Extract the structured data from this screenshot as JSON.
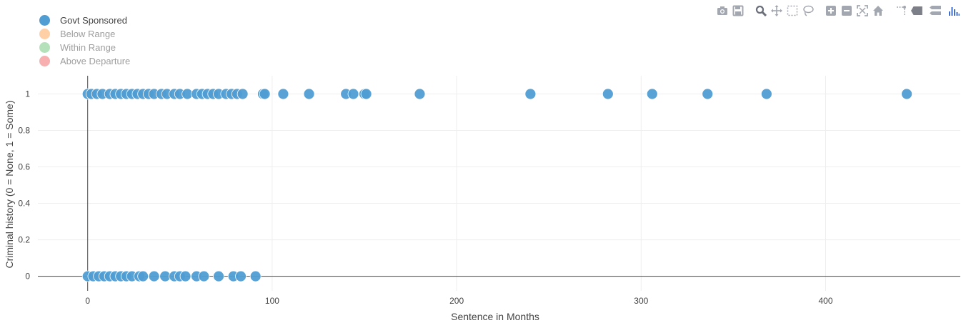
{
  "chart_data": {
    "type": "scatter",
    "xlabel": "Sentence in Months",
    "ylabel": "Criminal history (0 = None, 1 = Some)",
    "xlim": [
      -27,
      473
    ],
    "ylim": [
      -0.08,
      1.1
    ],
    "x_ticks": [
      0,
      100,
      200,
      300,
      400
    ],
    "y_ticks": [
      0,
      0.2,
      0.4,
      0.6,
      0.8,
      1
    ],
    "y_tick_labels": [
      "0",
      "0.2",
      "0.4",
      "0.6",
      "0.8",
      "1"
    ],
    "legend": [
      {
        "name": "Govt Sponsored",
        "color": "#4f9dd3",
        "visible": true
      },
      {
        "name": "Below Range",
        "color": "#ffc896",
        "visible": false
      },
      {
        "name": "Within Range",
        "color": "#a7dcae",
        "visible": false
      },
      {
        "name": "Above Departure",
        "color": "#f6a1a1",
        "visible": false
      }
    ],
    "series": [
      {
        "name": "Govt Sponsored",
        "color": "#4f9dd3",
        "points": [
          {
            "x": 0,
            "y": 1
          },
          {
            "x": 2,
            "y": 1
          },
          {
            "x": 5,
            "y": 1
          },
          {
            "x": 8,
            "y": 1
          },
          {
            "x": 12,
            "y": 1
          },
          {
            "x": 15,
            "y": 1
          },
          {
            "x": 18,
            "y": 1
          },
          {
            "x": 21,
            "y": 1
          },
          {
            "x": 24,
            "y": 1
          },
          {
            "x": 27,
            "y": 1
          },
          {
            "x": 30,
            "y": 1
          },
          {
            "x": 33,
            "y": 1
          },
          {
            "x": 36,
            "y": 1
          },
          {
            "x": 40,
            "y": 1
          },
          {
            "x": 43,
            "y": 1
          },
          {
            "x": 47,
            "y": 1
          },
          {
            "x": 50,
            "y": 1
          },
          {
            "x": 54,
            "y": 1
          },
          {
            "x": 59,
            "y": 1
          },
          {
            "x": 62,
            "y": 1
          },
          {
            "x": 65,
            "y": 1
          },
          {
            "x": 68,
            "y": 1
          },
          {
            "x": 71,
            "y": 1
          },
          {
            "x": 75,
            "y": 1
          },
          {
            "x": 78,
            "y": 1
          },
          {
            "x": 81,
            "y": 1
          },
          {
            "x": 84,
            "y": 1
          },
          {
            "x": 95,
            "y": 1
          },
          {
            "x": 96,
            "y": 1
          },
          {
            "x": 106,
            "y": 1
          },
          {
            "x": 120,
            "y": 1
          },
          {
            "x": 140,
            "y": 1
          },
          {
            "x": 144,
            "y": 1
          },
          {
            "x": 150,
            "y": 1
          },
          {
            "x": 151,
            "y": 1
          },
          {
            "x": 180,
            "y": 1
          },
          {
            "x": 240,
            "y": 1
          },
          {
            "x": 282,
            "y": 1
          },
          {
            "x": 306,
            "y": 1
          },
          {
            "x": 336,
            "y": 1
          },
          {
            "x": 368,
            "y": 1
          },
          {
            "x": 444,
            "y": 1
          },
          {
            "x": 0,
            "y": 0
          },
          {
            "x": 3,
            "y": 0
          },
          {
            "x": 6,
            "y": 0
          },
          {
            "x": 9,
            "y": 0
          },
          {
            "x": 12,
            "y": 0
          },
          {
            "x": 15,
            "y": 0
          },
          {
            "x": 18,
            "y": 0
          },
          {
            "x": 21,
            "y": 0
          },
          {
            "x": 24,
            "y": 0
          },
          {
            "x": 28,
            "y": 0
          },
          {
            "x": 30,
            "y": 0
          },
          {
            "x": 36,
            "y": 0
          },
          {
            "x": 42,
            "y": 0
          },
          {
            "x": 47,
            "y": 0
          },
          {
            "x": 50,
            "y": 0
          },
          {
            "x": 53,
            "y": 0
          },
          {
            "x": 59,
            "y": 0
          },
          {
            "x": 63,
            "y": 0
          },
          {
            "x": 71,
            "y": 0
          },
          {
            "x": 79,
            "y": 0
          },
          {
            "x": 83,
            "y": 0
          },
          {
            "x": 91,
            "y": 0
          }
        ]
      }
    ]
  },
  "modebar": {
    "buttons": [
      "camera-icon",
      "save-icon",
      "zoom-icon",
      "pan-icon",
      "box-select-icon",
      "lasso-icon",
      "zoom-in-icon",
      "zoom-out-icon",
      "autoscale-icon",
      "home-icon",
      "spike-lines-icon",
      "hover-closest-icon",
      "hover-compare-icon",
      "plotly-logo-icon"
    ]
  }
}
